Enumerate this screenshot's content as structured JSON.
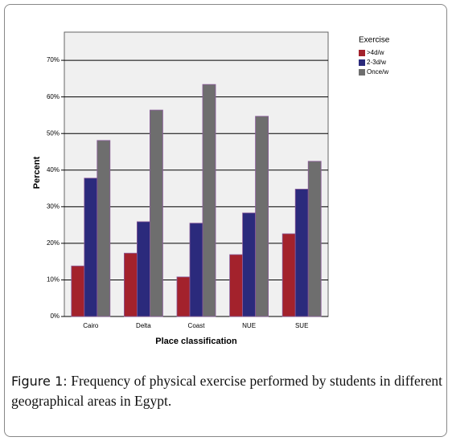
{
  "chart_data": {
    "type": "bar",
    "y_label": "Percent",
    "x_label": "Place classification",
    "legend_title": "Exercise",
    "legend_position": "right",
    "categories": [
      "Cairo",
      "Delta",
      "Coast",
      "NUE",
      "SUE"
    ],
    "series": [
      {
        "name": ">4d/w",
        "color": "#a3222c",
        "values": [
          13.8,
          17.3,
          10.8,
          16.9,
          22.6
        ]
      },
      {
        "name": "2-3d/w",
        "color": "#2b2a7c",
        "values": [
          37.8,
          25.9,
          25.5,
          28.3,
          34.8
        ]
      },
      {
        "name": "Once/w",
        "color": "#6e6e6e",
        "values": [
          48.1,
          56.4,
          63.4,
          54.7,
          42.4
        ]
      }
    ],
    "ylim": [
      0,
      77.7
    ],
    "yticks": [
      {
        "value": 0,
        "label": "0%"
      },
      {
        "value": 10,
        "label": "10%"
      },
      {
        "value": 20,
        "label": "20%"
      },
      {
        "value": 30,
        "label": "30%"
      },
      {
        "value": 40,
        "label": "40%"
      },
      {
        "value": 50,
        "label": "50%"
      },
      {
        "value": 60,
        "label": "60%"
      },
      {
        "value": 70,
        "label": "70%"
      }
    ],
    "grid": true
  },
  "caption": {
    "label": "Figure 1:",
    "text": "Frequency of physical exercise performed by students in different geographical areas in Egypt."
  }
}
